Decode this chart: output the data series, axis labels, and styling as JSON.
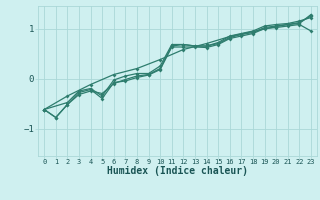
{
  "xlabel": "Humidex (Indice chaleur)",
  "bg_color": "#cff0f0",
  "line_color": "#2e7d6e",
  "grid_color": "#aad8d8",
  "xlim": [
    -0.5,
    23.5
  ],
  "ylim": [
    -1.55,
    1.45
  ],
  "yticks": [
    -1,
    0,
    1
  ],
  "xticks": [
    0,
    1,
    2,
    3,
    4,
    5,
    6,
    7,
    8,
    9,
    10,
    11,
    12,
    13,
    14,
    15,
    16,
    17,
    18,
    19,
    20,
    21,
    22,
    23
  ],
  "series": [
    {
      "x": [
        0,
        1,
        2,
        3,
        4,
        5,
        6,
        7,
        8,
        9,
        10,
        11,
        12,
        13,
        14,
        15,
        16,
        17,
        18,
        19,
        20,
        21,
        22,
        23
      ],
      "y": [
        -0.62,
        -0.78,
        -0.52,
        -0.32,
        -0.25,
        -0.3,
        -0.1,
        -0.02,
        0.05,
        0.08,
        0.2,
        0.65,
        0.68,
        0.65,
        0.65,
        0.7,
        0.82,
        0.88,
        0.92,
        1.02,
        1.05,
        1.08,
        1.1,
        1.28
      ]
    },
    {
      "x": [
        0,
        1,
        2,
        3,
        4,
        5,
        6,
        7,
        8,
        9,
        10,
        11,
        12,
        13,
        14,
        15,
        16,
        17,
        18,
        19,
        20,
        21,
        22,
        23
      ],
      "y": [
        -0.62,
        -0.78,
        -0.52,
        -0.28,
        -0.22,
        -0.4,
        -0.08,
        -0.05,
        0.02,
        0.07,
        0.18,
        0.63,
        0.63,
        0.63,
        0.62,
        0.68,
        0.8,
        0.85,
        0.9,
        1.0,
        1.02,
        1.05,
        1.08,
        0.95
      ]
    },
    {
      "x": [
        0,
        2,
        3,
        4,
        5,
        6,
        7,
        8,
        9,
        10,
        11,
        12,
        13,
        14,
        15,
        16,
        17,
        18,
        19,
        20,
        21,
        22,
        23
      ],
      "y": [
        -0.62,
        -0.48,
        -0.25,
        -0.2,
        -0.35,
        -0.03,
        0.05,
        0.1,
        0.1,
        0.25,
        0.68,
        0.68,
        0.65,
        0.65,
        0.72,
        0.85,
        0.9,
        0.95,
        1.05,
        1.08,
        1.1,
        1.15,
        1.22
      ]
    },
    {
      "x": [
        0,
        2,
        4,
        6,
        8,
        10,
        12,
        14,
        16,
        18,
        20,
        22,
        23
      ],
      "y": [
        -0.62,
        -0.35,
        -0.12,
        0.08,
        0.2,
        0.38,
        0.58,
        0.7,
        0.84,
        0.94,
        1.04,
        1.12,
        1.25
      ]
    }
  ]
}
